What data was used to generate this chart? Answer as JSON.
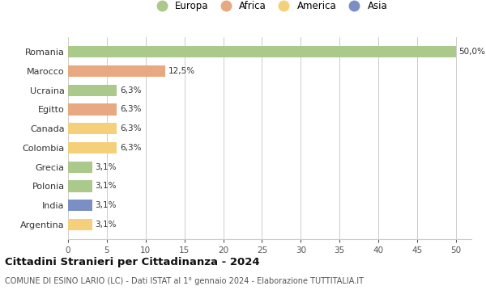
{
  "countries": [
    "Romania",
    "Marocco",
    "Ucraina",
    "Egitto",
    "Canada",
    "Colombia",
    "Grecia",
    "Polonia",
    "India",
    "Argentina"
  ],
  "values": [
    50.0,
    12.5,
    6.3,
    6.3,
    6.3,
    6.3,
    3.1,
    3.1,
    3.1,
    3.1
  ],
  "labels": [
    "50,0%",
    "12,5%",
    "6,3%",
    "6,3%",
    "6,3%",
    "6,3%",
    "3,1%",
    "3,1%",
    "3,1%",
    "3,1%"
  ],
  "colors": [
    "#aac98a",
    "#e8a882",
    "#aac98a",
    "#e8a882",
    "#f5d07a",
    "#f5d07a",
    "#aac98a",
    "#aac98a",
    "#7b8fc4",
    "#f5d07a"
  ],
  "legend_labels": [
    "Europa",
    "Africa",
    "America",
    "Asia"
  ],
  "legend_colors": [
    "#aac98a",
    "#e8a882",
    "#f5d07a",
    "#7b8fc4"
  ],
  "title": "Cittadini Stranieri per Cittadinanza - 2024",
  "subtitle": "COMUNE DI ESINO LARIO (LC) - Dati ISTAT al 1° gennaio 2024 - Elaborazione TUTTITALIA.IT",
  "xlim": [
    0,
    52
  ],
  "xticks": [
    0,
    5,
    10,
    15,
    20,
    25,
    30,
    35,
    40,
    45,
    50
  ],
  "bg_color": "#ffffff",
  "grid_color": "#cccccc"
}
